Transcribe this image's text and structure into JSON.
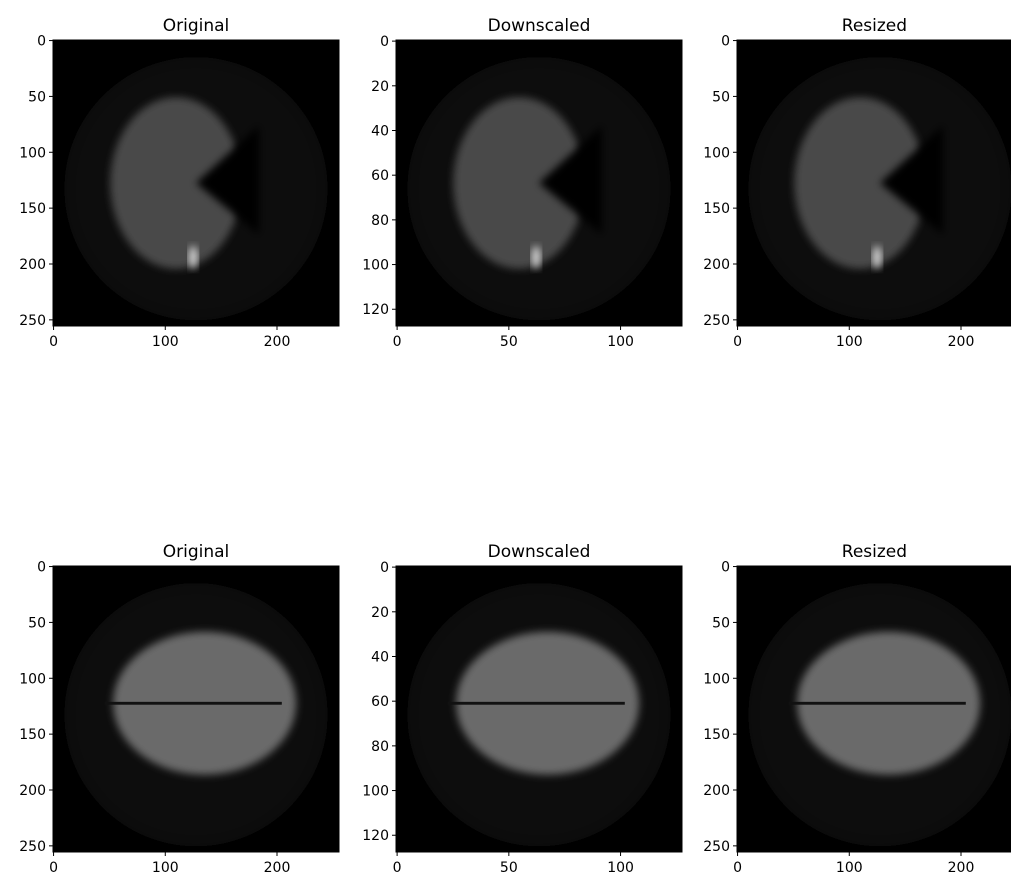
{
  "chart_data": [
    {
      "type": "image",
      "title": "Original",
      "xlim": [
        -0.5,
        255.5
      ],
      "ylim": [
        255.5,
        -0.5
      ],
      "xticks": [
        0,
        100,
        200
      ],
      "yticks": [
        0,
        50,
        100,
        150,
        200,
        250
      ]
    },
    {
      "type": "image",
      "title": "Downscaled",
      "xlim": [
        -0.5,
        127.5
      ],
      "ylim": [
        127.5,
        -0.5
      ],
      "xticks": [
        0,
        50,
        100
      ],
      "yticks": [
        0,
        20,
        40,
        60,
        80,
        100,
        120
      ]
    },
    {
      "type": "image",
      "title": "Resized",
      "xlim": [
        -0.5,
        245.5
      ],
      "ylim": [
        255.5,
        -0.5
      ],
      "xticks": [
        0,
        100,
        200
      ],
      "yticks": [
        0,
        50,
        100,
        150,
        200,
        250
      ]
    },
    {
      "type": "image",
      "title": "Original",
      "xlim": [
        -0.5,
        255.5
      ],
      "ylim": [
        255.5,
        -0.5
      ],
      "xticks": [
        0,
        100,
        200
      ],
      "yticks": [
        0,
        50,
        100,
        150,
        200,
        250
      ]
    },
    {
      "type": "image",
      "title": "Downscaled",
      "xlim": [
        -0.5,
        127.5
      ],
      "ylim": [
        127.5,
        -0.5
      ],
      "xticks": [
        0,
        50,
        100
      ],
      "yticks": [
        0,
        20,
        40,
        60,
        80,
        100,
        120
      ]
    },
    {
      "type": "image",
      "title": "Resized",
      "xlim": [
        -0.5,
        245.5
      ],
      "ylim": [
        255.5,
        -0.5
      ],
      "xticks": [
        0,
        100,
        200
      ],
      "yticks": [
        0,
        50,
        100,
        150,
        200,
        250
      ]
    }
  ]
}
